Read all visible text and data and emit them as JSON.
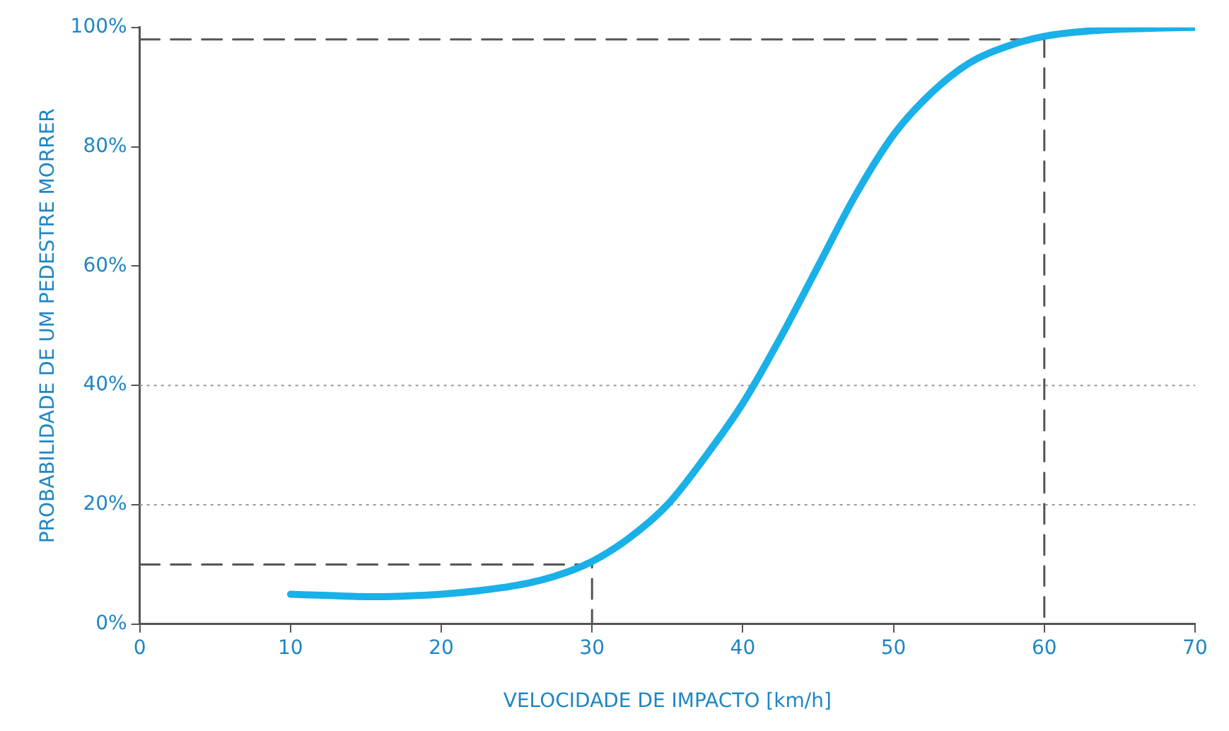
{
  "chart_data": {
    "type": "line",
    "xlabel": "VELOCIDADE DE IMPACTO [km/h]",
    "ylabel": "PROBABILIDADE DE UM PEDESTRE MORRER",
    "xlim": [
      0,
      70
    ],
    "xticks": [
      0,
      10,
      20,
      30,
      40,
      50,
      60,
      70
    ],
    "ylim": [
      0,
      100
    ],
    "yticks": [
      {
        "value": 0,
        "label": "0%"
      },
      {
        "value": 20,
        "label": "20%"
      },
      {
        "value": 40,
        "label": "40%"
      },
      {
        "value": 60,
        "label": "60%"
      },
      {
        "value": 80,
        "label": "80%"
      },
      {
        "value": 100,
        "label": "100%"
      }
    ],
    "grid": false,
    "legend": false,
    "marker": "none",
    "ref_lines": [
      {
        "axis": "y",
        "value": 20,
        "color": "#999999",
        "line_style": "dotted"
      },
      {
        "axis": "y",
        "value": 40,
        "color": "#999999",
        "line_style": "dotted"
      }
    ],
    "series": [
      {
        "color": "#1ab0e8",
        "line_style": "solid",
        "x": [
          10,
          12.5,
          15,
          17.5,
          20,
          22.5,
          25,
          27.5,
          30,
          32.5,
          35,
          37.5,
          40,
          42.5,
          45,
          47.5,
          50,
          52.5,
          55,
          57.5,
          60,
          62.5,
          65,
          67.5,
          70
        ],
        "values": [
          5,
          4.8,
          4.6,
          4.7,
          5,
          5.6,
          6.5,
          8,
          10.5,
          14.5,
          20,
          28,
          37,
          48,
          60,
          72,
          82,
          89,
          94,
          96.8,
          98.5,
          99.3,
          99.7,
          99.9,
          100
        ]
      },
      {
        "color": "#555555",
        "line_style": "dashed",
        "x": [
          0,
          30,
          30
        ],
        "values": [
          10,
          10,
          0
        ]
      },
      {
        "color": "#555555",
        "line_style": "dashed",
        "x": [
          0,
          60,
          60
        ],
        "values": [
          98,
          98,
          0
        ]
      }
    ]
  }
}
